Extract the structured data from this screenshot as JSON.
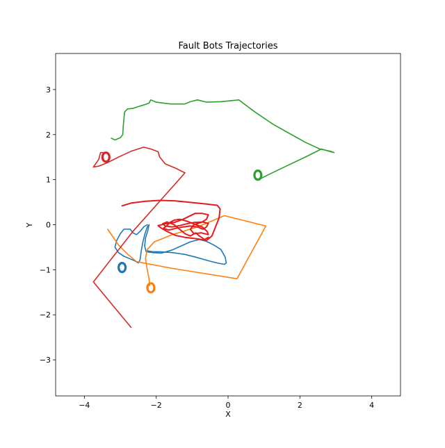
{
  "chart_data": {
    "type": "line",
    "title": "Fault Bots Trajectories",
    "xlabel": "X",
    "ylabel": "Y",
    "xlim": [
      -4.8,
      4.8
    ],
    "ylim": [
      -3.8,
      3.8
    ],
    "xticks": [
      -4,
      -2,
      0,
      2,
      4
    ],
    "yticks": [
      -3,
      -2,
      -1,
      0,
      1,
      2,
      3
    ],
    "xtick_labels": [
      "−4",
      "−2",
      "0",
      "2",
      "4"
    ],
    "ytick_labels": [
      "−3",
      "−2",
      "−1",
      "0",
      "1",
      "2",
      "3"
    ],
    "grid": false,
    "legend": "none",
    "series": [
      {
        "color": "#1f77b4",
        "points": [
          [
            -2.25,
            0.0
          ],
          [
            -2.35,
            -0.05
          ],
          [
            -2.45,
            -0.15
          ],
          [
            -2.55,
            -0.22
          ],
          [
            -2.65,
            -0.18
          ],
          [
            -2.72,
            -0.1
          ],
          [
            -2.9,
            -0.1
          ],
          [
            -3.0,
            -0.2
          ],
          [
            -3.1,
            -0.35
          ],
          [
            -3.15,
            -0.5
          ],
          [
            -3.05,
            -0.62
          ],
          [
            -2.9,
            -0.7
          ],
          [
            -2.75,
            -0.75
          ],
          [
            -2.6,
            -0.8
          ],
          [
            -2.5,
            -0.85
          ],
          [
            -2.45,
            -0.78
          ],
          [
            -2.42,
            -0.6
          ],
          [
            -2.38,
            -0.42
          ],
          [
            -2.32,
            -0.22
          ],
          [
            -2.25,
            -0.05
          ],
          [
            -2.2,
            0.0
          ],
          [
            -2.23,
            -0.12
          ],
          [
            -2.3,
            -0.3
          ],
          [
            -2.32,
            -0.48
          ],
          [
            -2.28,
            -0.6
          ],
          [
            -2.1,
            -0.62
          ],
          [
            -1.85,
            -0.63
          ],
          [
            -1.55,
            -0.56
          ],
          [
            -1.3,
            -0.47
          ],
          [
            -1.05,
            -0.38
          ],
          [
            -0.8,
            -0.33
          ],
          [
            -0.6,
            -0.37
          ],
          [
            -0.4,
            -0.45
          ],
          [
            -0.2,
            -0.55
          ],
          [
            -0.08,
            -0.72
          ],
          [
            -0.05,
            -0.85
          ],
          [
            -0.1,
            -0.88
          ],
          [
            -0.3,
            -0.85
          ],
          [
            -0.55,
            -0.8
          ],
          [
            -0.9,
            -0.72
          ],
          [
            -1.2,
            -0.66
          ],
          [
            -1.55,
            -0.62
          ],
          [
            -1.9,
            -0.6
          ],
          [
            -2.1,
            -0.6
          ],
          [
            -2.25,
            -0.58
          ]
        ]
      },
      {
        "color": "#1f77b4",
        "ring": true,
        "points": [
          [
            -2.95,
            -0.95
          ]
        ]
      },
      {
        "color": "#ff7f0e",
        "points": [
          [
            -3.35,
            -0.1
          ],
          [
            -3.05,
            -0.45
          ],
          [
            -2.8,
            -0.65
          ],
          [
            -2.55,
            -0.82
          ],
          [
            -1.55,
            -0.97
          ],
          [
            0.25,
            -1.2
          ],
          [
            1.05,
            -0.03
          ],
          [
            -0.1,
            0.2
          ],
          [
            -0.85,
            -0.05
          ],
          [
            -1.55,
            -0.22
          ],
          [
            -2.05,
            -0.38
          ],
          [
            -2.25,
            -0.55
          ],
          [
            -2.3,
            -0.75
          ],
          [
            -2.25,
            -1.0
          ],
          [
            -2.2,
            -1.2
          ],
          [
            -2.18,
            -1.35
          ]
        ]
      },
      {
        "color": "#ff7f0e",
        "ring": true,
        "points": [
          [
            -2.15,
            -1.4
          ]
        ]
      },
      {
        "color": "#2ca02c",
        "points": [
          [
            -3.25,
            1.92
          ],
          [
            -3.15,
            1.88
          ],
          [
            -3.0,
            1.93
          ],
          [
            -2.93,
            2.0
          ],
          [
            -2.92,
            2.15
          ],
          [
            -2.9,
            2.35
          ],
          [
            -2.88,
            2.5
          ],
          [
            -2.8,
            2.57
          ],
          [
            -2.65,
            2.58
          ],
          [
            -2.5,
            2.62
          ],
          [
            -2.3,
            2.67
          ],
          [
            -2.2,
            2.7
          ],
          [
            -2.15,
            2.77
          ],
          [
            -2.0,
            2.72
          ],
          [
            -1.8,
            2.7
          ],
          [
            -1.6,
            2.68
          ],
          [
            -1.2,
            2.68
          ],
          [
            -1.05,
            2.73
          ],
          [
            -0.85,
            2.77
          ],
          [
            -0.6,
            2.72
          ],
          [
            -0.2,
            2.73
          ],
          [
            0.3,
            2.77
          ],
          [
            0.5,
            2.65
          ],
          [
            0.75,
            2.5
          ],
          [
            1.25,
            2.23
          ],
          [
            1.65,
            2.05
          ],
          [
            2.15,
            1.83
          ],
          [
            2.55,
            1.68
          ],
          [
            2.85,
            1.63
          ],
          [
            2.95,
            1.6
          ],
          [
            2.85,
            1.62
          ],
          [
            2.6,
            1.68
          ],
          [
            2.2,
            1.52
          ],
          [
            1.7,
            1.33
          ],
          [
            1.15,
            1.12
          ],
          [
            0.85,
            1.0
          ]
        ]
      },
      {
        "color": "#2ca02c",
        "ring": true,
        "points": [
          [
            0.83,
            1.1
          ]
        ]
      },
      {
        "color": "#d62728",
        "points": [
          [
            -2.7,
            -2.28
          ],
          [
            -3.2,
            -1.8
          ],
          [
            -3.75,
            -1.27
          ],
          [
            -2.65,
            -0.15
          ],
          [
            -1.2,
            1.15
          ],
          [
            -1.2,
            1.15
          ],
          [
            -1.45,
            1.25
          ],
          [
            -1.75,
            1.35
          ],
          [
            -1.9,
            1.5
          ],
          [
            -1.95,
            1.62
          ],
          [
            -2.15,
            1.68
          ],
          [
            -2.35,
            1.72
          ],
          [
            -2.7,
            1.63
          ],
          [
            -3.05,
            1.5
          ],
          [
            -3.35,
            1.38
          ],
          [
            -3.6,
            1.3
          ],
          [
            -3.75,
            1.28
          ],
          [
            -3.6,
            1.45
          ],
          [
            -3.55,
            1.6
          ],
          [
            -3.4,
            1.6
          ]
        ]
      },
      {
        "color": "#d62728",
        "ring": true,
        "points": [
          [
            -3.4,
            1.5
          ]
        ]
      },
      {
        "color": "#e41a1c",
        "points": [
          [
            -2.95,
            0.42
          ],
          [
            -2.7,
            0.48
          ],
          [
            -2.3,
            0.52
          ],
          [
            -1.9,
            0.54
          ],
          [
            -1.5,
            0.53
          ],
          [
            -1.1,
            0.5
          ],
          [
            -0.6,
            0.46
          ],
          [
            -0.3,
            0.43
          ],
          [
            -0.22,
            0.35
          ],
          [
            -0.25,
            0.15
          ],
          [
            -0.35,
            -0.05
          ],
          [
            -0.45,
            -0.25
          ],
          [
            -0.6,
            -0.35
          ],
          [
            -0.8,
            -0.32
          ],
          [
            -1.0,
            -0.3
          ],
          [
            -1.2,
            -0.28
          ],
          [
            -1.45,
            -0.24
          ],
          [
            -1.7,
            -0.15
          ],
          [
            -1.85,
            -0.08
          ],
          [
            -1.95,
            -0.02
          ],
          [
            -1.75,
            0.02
          ],
          [
            -1.5,
            0.05
          ],
          [
            -1.25,
            0.12
          ],
          [
            -1.1,
            0.18
          ],
          [
            -0.92,
            0.25
          ],
          [
            -0.72,
            0.25
          ],
          [
            -0.55,
            0.22
          ],
          [
            -0.6,
            0.12
          ],
          [
            -0.75,
            0.05
          ],
          [
            -0.95,
            0.0
          ],
          [
            -1.05,
            -0.1
          ],
          [
            -0.95,
            -0.2
          ],
          [
            -0.75,
            -0.18
          ],
          [
            -0.55,
            -0.22
          ],
          [
            -0.58,
            -0.15
          ],
          [
            -0.72,
            -0.05
          ],
          [
            -0.9,
            0.0
          ],
          [
            -1.15,
            0.08
          ],
          [
            -1.35,
            0.12
          ],
          [
            -1.5,
            0.1
          ],
          [
            -1.62,
            0.05
          ],
          [
            -1.7,
            -0.02
          ],
          [
            -1.8,
            -0.08
          ],
          [
            -1.65,
            -0.12
          ],
          [
            -1.45,
            -0.08
          ],
          [
            -1.25,
            -0.05
          ],
          [
            -1.05,
            -0.03
          ],
          [
            -0.85,
            -0.05
          ],
          [
            -0.7,
            -0.1
          ],
          [
            -0.6,
            -0.05
          ],
          [
            -0.55,
            0.03
          ],
          [
            -0.7,
            0.06
          ],
          [
            -0.95,
            0.05
          ],
          [
            -1.15,
            0.02
          ],
          [
            -1.35,
            -0.02
          ],
          [
            -1.55,
            -0.05
          ],
          [
            -1.75,
            -0.03
          ],
          [
            -1.82,
            0.02
          ],
          [
            -1.7,
            0.06
          ],
          [
            -1.5,
            0.0
          ],
          [
            -1.35,
            -0.1
          ],
          [
            -1.2,
            -0.2
          ],
          [
            -1.05,
            -0.25
          ],
          [
            -0.9,
            -0.18
          ],
          [
            -0.8,
            -0.25
          ],
          [
            -0.65,
            -0.33
          ],
          [
            -0.55,
            -0.28
          ]
        ]
      }
    ]
  }
}
